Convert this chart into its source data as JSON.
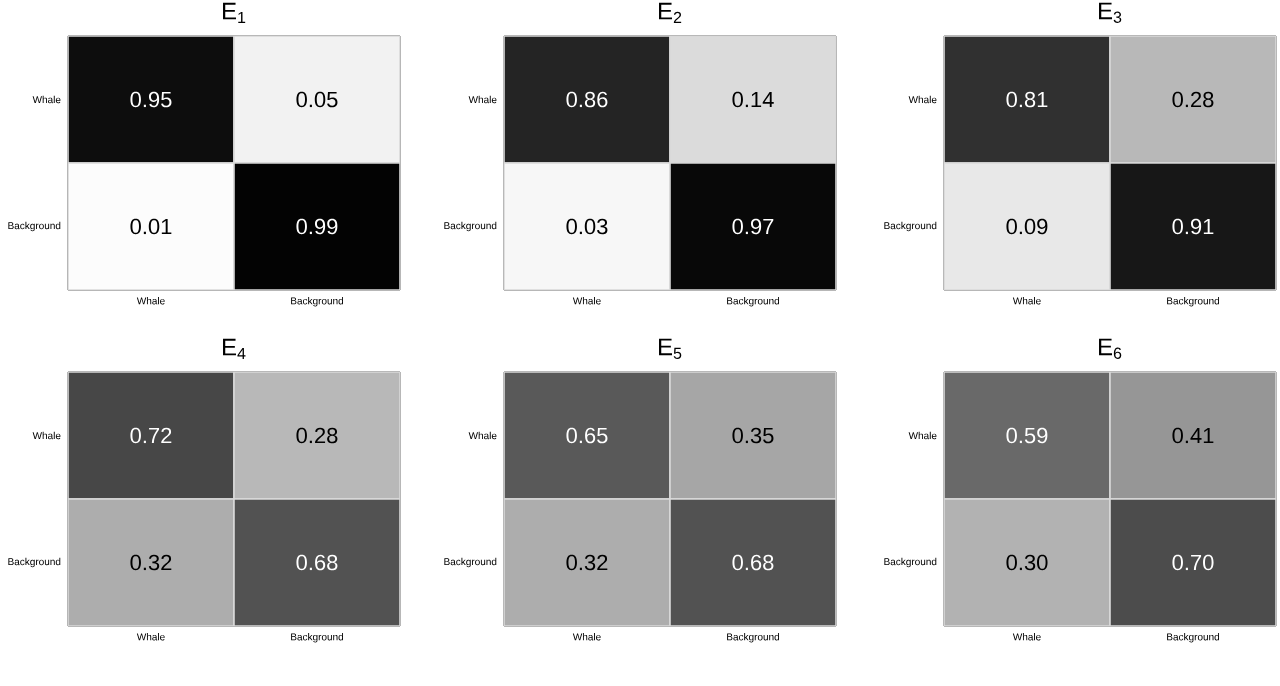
{
  "chart_data": [
    {
      "type": "heatmap",
      "title": "E$_{1}$",
      "categories": [
        "Whale",
        "Background"
      ],
      "y_categories": [
        "Whale",
        "Background"
      ],
      "cells": [
        [
          0.95,
          0.05
        ],
        [
          0.01,
          0.99
        ]
      ],
      "cell_labels": [
        [
          "0.95",
          "0.05"
        ],
        [
          "0.01",
          "0.99"
        ]
      ]
    },
    {
      "type": "heatmap",
      "title": "E$_{2}$",
      "categories": [
        "Whale",
        "Background"
      ],
      "y_categories": [
        "Whale",
        "Background"
      ],
      "cells": [
        [
          0.86,
          0.14
        ],
        [
          0.03,
          0.97
        ]
      ],
      "cell_labels": [
        [
          "0.86",
          "0.14"
        ],
        [
          "0.03",
          "0.97"
        ]
      ]
    },
    {
      "type": "heatmap",
      "title": "E$_{3}$",
      "categories": [
        "Whale",
        "Background"
      ],
      "y_categories": [
        "Whale",
        "Background"
      ],
      "cells": [
        [
          0.81,
          0.28
        ],
        [
          0.09,
          0.91
        ]
      ],
      "cell_labels": [
        [
          "0.81",
          "0.28"
        ],
        [
          "0.09",
          "0.91"
        ]
      ]
    },
    {
      "type": "heatmap",
      "title": "E$_{4}$",
      "categories": [
        "Whale",
        "Background"
      ],
      "y_categories": [
        "Whale",
        "Background"
      ],
      "cells": [
        [
          0.72,
          0.28
        ],
        [
          0.32,
          0.68
        ]
      ],
      "cell_labels": [
        [
          "0.72",
          "0.28"
        ],
        [
          "0.32",
          "0.68"
        ]
      ]
    },
    {
      "type": "heatmap",
      "title": "E$_{5}$",
      "categories": [
        "Whale",
        "Background"
      ],
      "y_categories": [
        "Whale",
        "Background"
      ],
      "cells": [
        [
          0.65,
          0.35
        ],
        [
          0.32,
          0.68
        ]
      ],
      "cell_labels": [
        [
          "0.65",
          "0.35"
        ],
        [
          "0.32",
          "0.68"
        ]
      ]
    },
    {
      "type": "heatmap",
      "title": "E$_{6}$",
      "categories": [
        "Whale",
        "Background"
      ],
      "y_categories": [
        "Whale",
        "Background"
      ],
      "cells": [
        [
          0.59,
          0.41
        ],
        [
          0.3,
          0.7
        ]
      ],
      "cell_labels": [
        [
          "0.59",
          "0.41"
        ],
        [
          "0.30",
          "0.70"
        ]
      ]
    }
  ]
}
